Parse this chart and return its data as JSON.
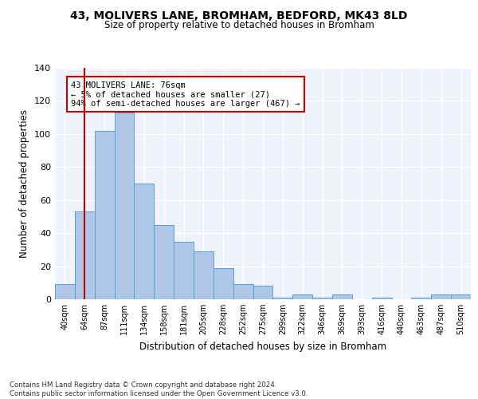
{
  "title1": "43, MOLIVERS LANE, BROMHAM, BEDFORD, MK43 8LD",
  "title2": "Size of property relative to detached houses in Bromham",
  "xlabel": "Distribution of detached houses by size in Bromham",
  "ylabel": "Number of detached properties",
  "bar_labels": [
    "40sqm",
    "64sqm",
    "87sqm",
    "111sqm",
    "134sqm",
    "158sqm",
    "181sqm",
    "205sqm",
    "228sqm",
    "252sqm",
    "275sqm",
    "299sqm",
    "322sqm",
    "346sqm",
    "369sqm",
    "393sqm",
    "416sqm",
    "440sqm",
    "463sqm",
    "487sqm",
    "510sqm"
  ],
  "bar_values": [
    9,
    53,
    102,
    113,
    70,
    45,
    35,
    29,
    19,
    9,
    8,
    1,
    3,
    1,
    3,
    0,
    1,
    0,
    1,
    3,
    3
  ],
  "bar_color": "#aec6e8",
  "bar_edge_color": "#5a9fd4",
  "vline_x": 1.0,
  "vline_color": "#cc0000",
  "annotation_text": "43 MOLIVERS LANE: 76sqm\n← 5% of detached houses are smaller (27)\n94% of semi-detached houses are larger (467) →",
  "annotation_box_color": "#ffffff",
  "annotation_box_edge": "#cc0000",
  "ylim": [
    0,
    140
  ],
  "yticks": [
    0,
    20,
    40,
    60,
    80,
    100,
    120,
    140
  ],
  "bg_color": "#eef2fc",
  "grid_color": "#ffffff",
  "footer1": "Contains HM Land Registry data © Crown copyright and database right 2024.",
  "footer2": "Contains public sector information licensed under the Open Government Licence v3.0."
}
